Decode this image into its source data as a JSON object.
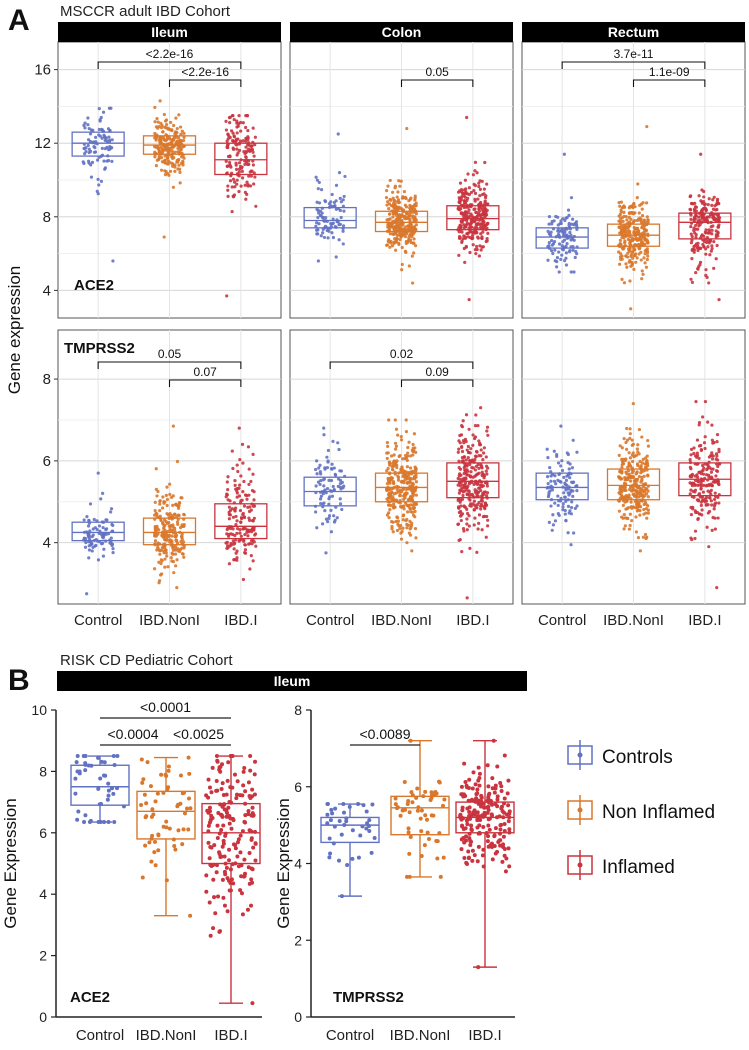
{
  "panelA": {
    "letter": "A",
    "cohort_title": "MSCCR adult IBD Cohort",
    "ylabel": "Gene expression",
    "categories": [
      "Control",
      "IBD.NonI",
      "IBD.I"
    ],
    "facets": [
      "Ileum",
      "Colon",
      "Rectum"
    ]
  },
  "panelB": {
    "letter": "B",
    "cohort_title": "RISK CD Pediatric Cohort",
    "strip": "Ileum",
    "ylabel": "Gene Expression",
    "categories": [
      "Control",
      "IBD.NonI",
      "IBD.I"
    ],
    "legend": [
      {
        "label": "Controls",
        "color": "#6272c3"
      },
      {
        "label": "Non Inflamed",
        "color": "#d9782c"
      },
      {
        "label": "Inflamed",
        "color": "#c9343f"
      }
    ]
  },
  "colors": {
    "Control": "#6272c3",
    "IBD.NonI": "#d9782c",
    "IBD.I": "#c9343f"
  },
  "chart_data": [
    {
      "type": "box",
      "panel": "A",
      "gene": "ACE2",
      "ylabel": "Gene expression",
      "ylim": [
        2.5,
        17.5
      ],
      "yticks": [
        4,
        8,
        12,
        16
      ],
      "grid": true,
      "facets": [
        {
          "name": "Ileum",
          "boxes": [
            {
              "group": "Control",
              "q1": 11.3,
              "median": 12.0,
              "q3": 12.6,
              "min": 5.6,
              "max": 13.9,
              "n": 90
            },
            {
              "group": "IBD.NonI",
              "q1": 11.4,
              "median": 11.9,
              "q3": 12.4,
              "min": 6.9,
              "max": 14.3,
              "n": 220
            },
            {
              "group": "IBD.I",
              "q1": 10.3,
              "median": 11.1,
              "q3": 12.0,
              "min": 3.7,
              "max": 13.5,
              "n": 160
            }
          ],
          "comparisons": [
            {
              "from": "Control",
              "to": "IBD.I",
              "label": "<2.2e-16"
            },
            {
              "from": "IBD.NonI",
              "to": "IBD.I",
              "label": "<2.2e-16"
            }
          ]
        },
        {
          "name": "Colon",
          "boxes": [
            {
              "group": "Control",
              "q1": 7.4,
              "median": 7.8,
              "q3": 8.5,
              "min": 5.6,
              "max": 12.5,
              "n": 90
            },
            {
              "group": "IBD.NonI",
              "q1": 7.2,
              "median": 7.7,
              "q3": 8.3,
              "min": 4.4,
              "max": 12.8,
              "n": 300
            },
            {
              "group": "IBD.I",
              "q1": 7.3,
              "median": 7.9,
              "q3": 8.6,
              "min": 3.5,
              "max": 13.4,
              "n": 280
            }
          ],
          "comparisons": [
            {
              "from": "IBD.NonI",
              "to": "IBD.I",
              "label": "0.05"
            }
          ]
        },
        {
          "name": "Rectum",
          "boxes": [
            {
              "group": "Control",
              "q1": 6.3,
              "median": 6.9,
              "q3": 7.4,
              "min": 5.0,
              "max": 11.4,
              "n": 110
            },
            {
              "group": "IBD.NonI",
              "q1": 6.4,
              "median": 7.0,
              "q3": 7.6,
              "min": 3.0,
              "max": 12.9,
              "n": 280
            },
            {
              "group": "IBD.I",
              "q1": 6.8,
              "median": 7.7,
              "q3": 8.2,
              "min": 3.5,
              "max": 11.4,
              "n": 200
            }
          ],
          "comparisons": [
            {
              "from": "Control",
              "to": "IBD.I",
              "label": "3.7e-11"
            },
            {
              "from": "IBD.NonI",
              "to": "IBD.I",
              "label": "1.1e-09"
            }
          ]
        }
      ]
    },
    {
      "type": "box",
      "panel": "A",
      "gene": "TMPRSS2",
      "ylabel": "Gene expression",
      "ylim": [
        2.5,
        9.2
      ],
      "yticks": [
        4,
        6,
        8
      ],
      "grid": true,
      "facets": [
        {
          "name": "Ileum",
          "boxes": [
            {
              "group": "Control",
              "q1": 4.05,
              "median": 4.25,
              "q3": 4.5,
              "min": 2.75,
              "max": 5.7,
              "n": 90
            },
            {
              "group": "IBD.NonI",
              "q1": 3.95,
              "median": 4.25,
              "q3": 4.6,
              "min": 2.9,
              "max": 6.85,
              "n": 220
            },
            {
              "group": "IBD.I",
              "q1": 4.1,
              "median": 4.4,
              "q3": 4.95,
              "min": 3.1,
              "max": 6.8,
              "n": 160
            }
          ],
          "comparisons": [
            {
              "from": "Control",
              "to": "IBD.I",
              "label": "0.05"
            },
            {
              "from": "IBD.NonI",
              "to": "IBD.I",
              "label": "0.07"
            }
          ]
        },
        {
          "name": "Colon",
          "boxes": [
            {
              "group": "Control",
              "q1": 4.9,
              "median": 5.25,
              "q3": 5.6,
              "min": 3.75,
              "max": 6.8,
              "n": 90
            },
            {
              "group": "IBD.NonI",
              "q1": 5.0,
              "median": 5.35,
              "q3": 5.7,
              "min": 3.8,
              "max": 7.0,
              "n": 300
            },
            {
              "group": "IBD.I",
              "q1": 5.1,
              "median": 5.5,
              "q3": 5.95,
              "min": 2.65,
              "max": 7.3,
              "n": 280
            }
          ],
          "comparisons": [
            {
              "from": "Control",
              "to": "IBD.I",
              "label": "0.02"
            },
            {
              "from": "IBD.NonI",
              "to": "IBD.I",
              "label": "0.09"
            }
          ]
        },
        {
          "name": "Rectum",
          "boxes": [
            {
              "group": "Control",
              "q1": 5.05,
              "median": 5.35,
              "q3": 5.7,
              "min": 3.95,
              "max": 6.85,
              "n": 110
            },
            {
              "group": "IBD.NonI",
              "q1": 5.05,
              "median": 5.4,
              "q3": 5.8,
              "min": 3.8,
              "max": 7.4,
              "n": 280
            },
            {
              "group": "IBD.I",
              "q1": 5.15,
              "median": 5.55,
              "q3": 5.95,
              "min": 2.9,
              "max": 7.45,
              "n": 200
            }
          ]
        }
      ]
    },
    {
      "type": "box",
      "panel": "B",
      "gene": "ACE2",
      "ylabel": "Gene Expression",
      "ylim": [
        0,
        10
      ],
      "yticks": [
        0,
        2,
        4,
        6,
        8,
        10
      ],
      "grid": false,
      "boxes": [
        {
          "group": "Control",
          "q1": 6.9,
          "median": 7.5,
          "q3": 8.2,
          "min": 6.35,
          "max": 8.5,
          "n": 45
        },
        {
          "group": "IBD.NonI",
          "q1": 5.8,
          "median": 6.7,
          "q3": 7.35,
          "min": 3.3,
          "max": 8.45,
          "n": 60
        },
        {
          "group": "IBD.I",
          "q1": 5.0,
          "median": 6.0,
          "q3": 6.95,
          "min": 0.45,
          "max": 8.5,
          "n": 190
        }
      ],
      "comparisons": [
        {
          "from": "Control",
          "to": "IBD.I",
          "label": "<0.0001"
        },
        {
          "from": "Control",
          "to": "IBD.NonI",
          "label": "<0.0004"
        },
        {
          "from": "IBD.NonI",
          "to": "IBD.I",
          "label": "<0.0025"
        }
      ]
    },
    {
      "type": "box",
      "panel": "B",
      "gene": "TMPRSS2",
      "ylabel": "Gene Expression",
      "ylim": [
        0,
        8
      ],
      "yticks": [
        0,
        2,
        4,
        6,
        8
      ],
      "grid": false,
      "boxes": [
        {
          "group": "Control",
          "q1": 4.55,
          "median": 5.0,
          "q3": 5.2,
          "min": 3.15,
          "max": 5.55,
          "n": 40
        },
        {
          "group": "IBD.NonI",
          "q1": 4.75,
          "median": 5.45,
          "q3": 5.75,
          "min": 3.65,
          "max": 7.2,
          "n": 55
        },
        {
          "group": "IBD.I",
          "q1": 4.8,
          "median": 5.2,
          "q3": 5.6,
          "min": 1.3,
          "max": 7.2,
          "n": 200
        }
      ],
      "comparisons": [
        {
          "from": "Control",
          "to": "IBD.NonI",
          "label": "<0.0089"
        }
      ]
    }
  ]
}
